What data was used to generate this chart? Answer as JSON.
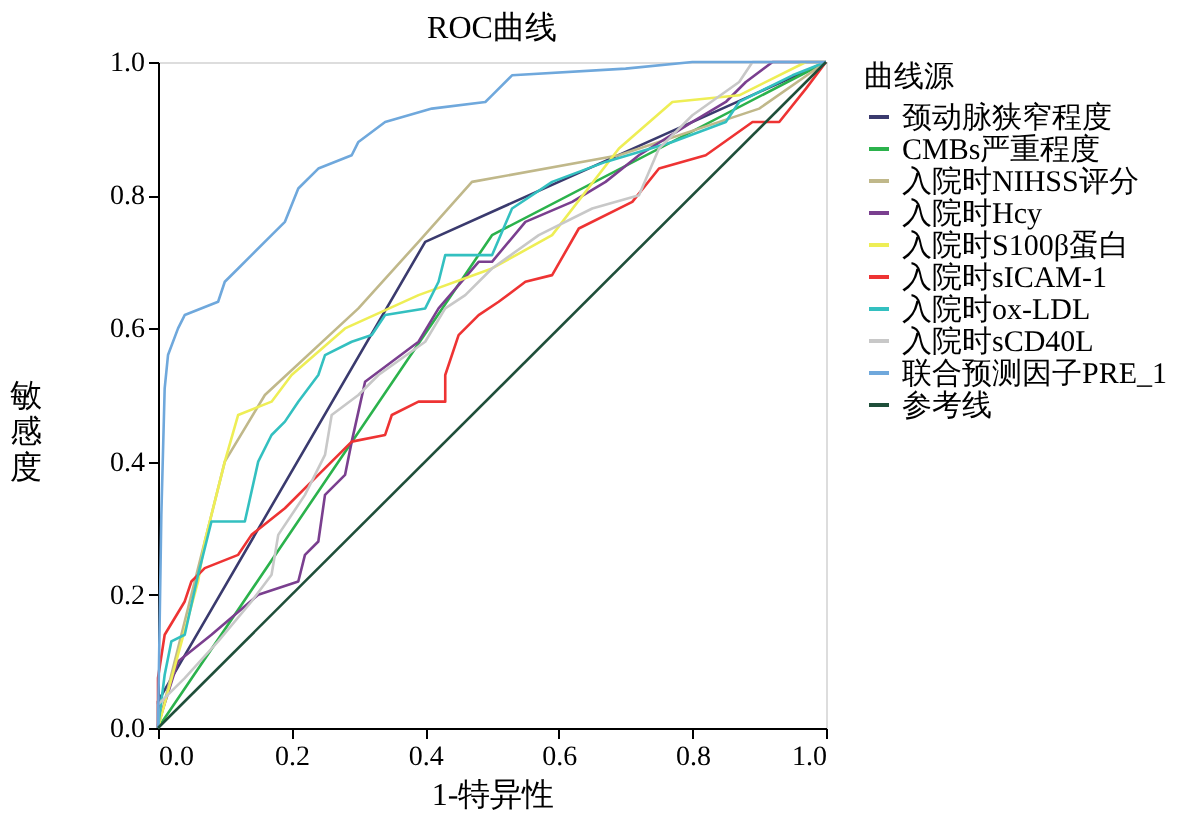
{
  "chart_data": {
    "type": "line",
    "title": "ROC曲线",
    "xlabel": "1-特异性",
    "ylabel": "敏感度",
    "legend_title": "曲线源",
    "legend": "right",
    "grid": false,
    "marker": "none",
    "line_style": "solid",
    "xlim": [
      0,
      1
    ],
    "ylim": [
      0,
      1
    ],
    "xticks": [
      {
        "value": 0,
        "label": "0.0"
      },
      {
        "value": 0.2,
        "label": "0.2"
      },
      {
        "value": 0.4,
        "label": "0.4"
      },
      {
        "value": 0.6,
        "label": "0.6"
      },
      {
        "value": 0.8,
        "label": "0.8"
      },
      {
        "value": 1,
        "label": "1.0"
      }
    ],
    "yticks": [
      {
        "value": 0,
        "label": "0.0"
      },
      {
        "value": 0.2,
        "label": "0.2"
      },
      {
        "value": 0.4,
        "label": "0.4"
      },
      {
        "value": 0.6,
        "label": "0.6"
      },
      {
        "value": 0.8,
        "label": "0.8"
      },
      {
        "value": 1,
        "label": "1.0"
      }
    ],
    "series": [
      {
        "name": "颈动脉狭窄程度",
        "color": "#3a3a6e",
        "x": [
          0,
          0,
          0.4,
          1
        ],
        "values": [
          0,
          0.04,
          0.73,
          1
        ]
      },
      {
        "name": "CMBs严重程度",
        "color": "#2bb24c",
        "x": [
          0,
          0.5,
          1
        ],
        "values": [
          0,
          0.74,
          1
        ]
      },
      {
        "name": "入院时NIHSS评分",
        "color": "#c0b88a",
        "x": [
          0,
          0.05,
          0.1,
          0.16,
          0.3,
          0.39,
          0.47,
          0.69,
          0.9,
          1
        ],
        "values": [
          0,
          0.2,
          0.4,
          0.5,
          0.63,
          0.73,
          0.82,
          0.86,
          0.93,
          1
        ]
      },
      {
        "name": "入院时Hcy",
        "color": "#7a3f8f",
        "x": [
          0,
          0,
          0.03,
          0.08,
          0.15,
          0.21,
          0.22,
          0.24,
          0.25,
          0.28,
          0.29,
          0.31,
          0.35,
          0.39,
          0.42,
          0.48,
          0.5,
          0.55,
          0.62,
          0.67,
          0.72,
          0.8,
          0.85,
          0.88,
          0.92,
          1
        ],
        "values": [
          0,
          0.005,
          0.1,
          0.14,
          0.2,
          0.22,
          0.26,
          0.28,
          0.35,
          0.38,
          0.43,
          0.52,
          0.55,
          0.58,
          0.63,
          0.7,
          0.7,
          0.76,
          0.79,
          0.82,
          0.86,
          0.91,
          0.94,
          0.97,
          1,
          1
        ]
      },
      {
        "name": "入院时S100β蛋白",
        "color": "#eeee55",
        "x": [
          0,
          0.06,
          0.07,
          0.1,
          0.12,
          0.17,
          0.2,
          0.28,
          0.39,
          0.5,
          0.59,
          0.69,
          0.77,
          0.87,
          0.97,
          1
        ],
        "values": [
          0,
          0.22,
          0.28,
          0.4,
          0.47,
          0.49,
          0.53,
          0.6,
          0.65,
          0.69,
          0.74,
          0.87,
          0.94,
          0.95,
          1,
          1
        ]
      },
      {
        "name": "入院时sICAM-1",
        "color": "#ee3333",
        "x": [
          0,
          0,
          0.01,
          0.04,
          0.05,
          0.07,
          0.12,
          0.14,
          0.19,
          0.24,
          0.29,
          0.34,
          0.35,
          0.39,
          0.43,
          0.43,
          0.45,
          0.48,
          0.51,
          0.55,
          0.59,
          0.63,
          0.71,
          0.75,
          0.82,
          0.89,
          0.93,
          0.97,
          1
        ],
        "values": [
          0,
          0.075,
          0.14,
          0.19,
          0.22,
          0.24,
          0.26,
          0.29,
          0.33,
          0.38,
          0.43,
          0.44,
          0.47,
          0.49,
          0.49,
          0.53,
          0.59,
          0.62,
          0.64,
          0.67,
          0.68,
          0.75,
          0.79,
          0.84,
          0.86,
          0.91,
          0.91,
          0.96,
          1
        ]
      },
      {
        "name": "入院时ox-LDL",
        "color": "#33c0c0",
        "x": [
          0,
          0.01,
          0.02,
          0.04,
          0.06,
          0.08,
          0.13,
          0.15,
          0.17,
          0.19,
          0.21,
          0.24,
          0.25,
          0.29,
          0.32,
          0.34,
          0.4,
          0.42,
          0.43,
          0.5,
          0.53,
          0.59,
          0.67,
          0.77,
          0.85,
          0.87,
          0.95,
          1
        ],
        "values": [
          0,
          0.08,
          0.13,
          0.14,
          0.23,
          0.31,
          0.31,
          0.4,
          0.44,
          0.46,
          0.49,
          0.53,
          0.56,
          0.58,
          0.59,
          0.62,
          0.63,
          0.67,
          0.71,
          0.71,
          0.78,
          0.82,
          0.85,
          0.88,
          0.91,
          0.94,
          0.98,
          1
        ]
      },
      {
        "name": "入院时sCD40L",
        "color": "#c8c8c8",
        "x": [
          0,
          0,
          0.04,
          0.09,
          0.14,
          0.17,
          0.18,
          0.22,
          0.25,
          0.26,
          0.3,
          0.33,
          0.4,
          0.43,
          0.46,
          0.5,
          0.57,
          0.65,
          0.72,
          0.75,
          0.8,
          0.87,
          0.89,
          1
        ],
        "values": [
          0,
          0.035,
          0.075,
          0.13,
          0.19,
          0.23,
          0.29,
          0.35,
          0.41,
          0.47,
          0.5,
          0.53,
          0.58,
          0.63,
          0.65,
          0.69,
          0.74,
          0.78,
          0.8,
          0.87,
          0.92,
          0.97,
          1,
          1
        ]
      },
      {
        "name": "联合预测因子PRE_1",
        "color": "#6fa8dc",
        "x": [
          0,
          0.005,
          0.01,
          0.015,
          0.03,
          0.04,
          0.09,
          0.1,
          0.12,
          0.14,
          0.17,
          0.19,
          0.21,
          0.24,
          0.29,
          0.3,
          0.34,
          0.41,
          0.49,
          0.5,
          0.53,
          0.7,
          0.8,
          1
        ],
        "values": [
          0,
          0.32,
          0.51,
          0.56,
          0.6,
          0.62,
          0.64,
          0.67,
          0.69,
          0.71,
          0.74,
          0.76,
          0.81,
          0.84,
          0.86,
          0.88,
          0.91,
          0.93,
          0.94,
          0.95,
          0.98,
          0.99,
          1,
          1
        ]
      },
      {
        "name": "参考线",
        "color": "#1f4f3a",
        "x": [
          0,
          1
        ],
        "values": [
          0,
          1
        ]
      }
    ]
  }
}
